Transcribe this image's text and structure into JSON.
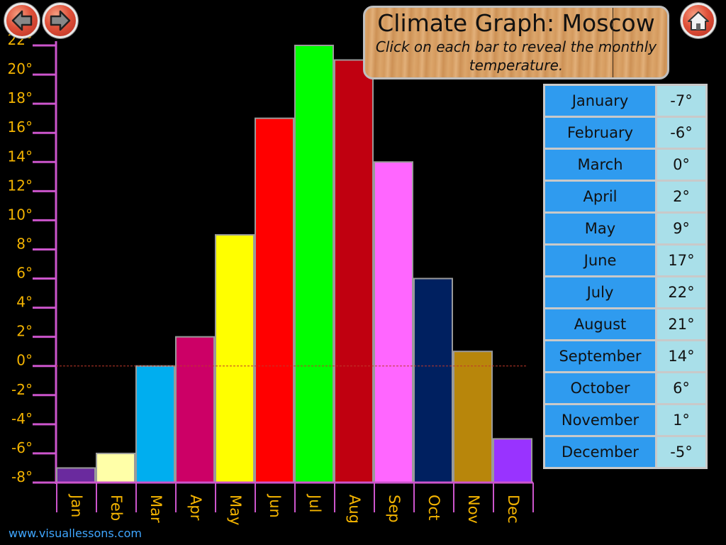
{
  "header": {
    "title": "Climate Graph: Moscow",
    "subtitle": "Click on each bar to reveal the monthly temperature."
  },
  "nav": {
    "back_icon": "arrow-left-icon",
    "forward_icon": "arrow-right-icon",
    "home_icon": "home-icon"
  },
  "table": {
    "rows": [
      {
        "month": "January",
        "temp": "-7°"
      },
      {
        "month": "February",
        "temp": "-6°"
      },
      {
        "month": "March",
        "temp": "0°"
      },
      {
        "month": "April",
        "temp": "2°"
      },
      {
        "month": "May",
        "temp": "9°"
      },
      {
        "month": "June",
        "temp": "17°"
      },
      {
        "month": "July",
        "temp": "22°"
      },
      {
        "month": "August",
        "temp": "21°"
      },
      {
        "month": "September",
        "temp": "14°"
      },
      {
        "month": "October",
        "temp": "6°"
      },
      {
        "month": "November",
        "temp": "1°"
      },
      {
        "month": "December",
        "temp": "-5°"
      }
    ]
  },
  "footer": {
    "site": "www.visuallessons.com"
  },
  "chart_data": {
    "type": "bar",
    "categories": [
      "Jan",
      "Feb",
      "Mar",
      "Apr",
      "May",
      "Jun",
      "Jul",
      "Aug",
      "Sep",
      "Oct",
      "Nov",
      "Dec"
    ],
    "values": [
      -7,
      -6,
      0,
      2,
      9,
      17,
      22,
      21,
      14,
      6,
      1,
      -5
    ],
    "colors": [
      "#6a2a9e",
      "#ffffa8",
      "#00aeef",
      "#cc0066",
      "#ffff00",
      "#ff0000",
      "#00ff00",
      "#c00010",
      "#ff66ff",
      "#002060",
      "#b8860b",
      "#9933ff"
    ],
    "ylim": [
      -8,
      22
    ],
    "ytick_values": [
      -8,
      -6,
      -4,
      -2,
      0,
      2,
      4,
      6,
      8,
      10,
      12,
      14,
      16,
      18,
      20,
      22
    ],
    "ytick_labels": [
      "-8°",
      "-6°",
      "-4°",
      "-2°",
      "0°",
      "2°",
      "4°",
      "6°",
      "8°",
      "10°",
      "12°",
      "14°",
      "16°",
      "18°",
      "20°",
      "22°"
    ],
    "zero_line": true,
    "axis_color": "#cc55cc",
    "label_color": "#f4b400"
  }
}
